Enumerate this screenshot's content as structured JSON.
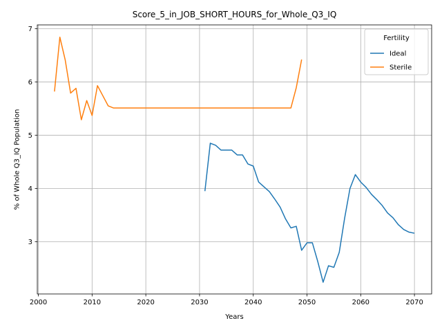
{
  "chart_data": {
    "type": "line",
    "title": "Score_5_in_JOB_SHORT_HOURS_for_Whole_Q3_IQ",
    "xlabel": "Years",
    "ylabel": "% of Whole Q3_IQ Population",
    "xlim": [
      1999.8,
      2073.2
    ],
    "ylim": [
      2.02,
      7.07
    ],
    "xticks": [
      2000,
      2010,
      2020,
      2030,
      2040,
      2050,
      2060,
      2070
    ],
    "yticks": [
      3,
      4,
      5,
      6,
      7
    ],
    "grid": true,
    "legend": {
      "title": "Fertility",
      "placement": "top-right"
    },
    "series": [
      {
        "name": "Ideal",
        "color": "#1f77b4",
        "x": [
          2031,
          2032,
          2033,
          2034,
          2035,
          2036,
          2037,
          2038,
          2039,
          2040,
          2041,
          2042,
          2043,
          2044,
          2045,
          2046,
          2047,
          2048,
          2049,
          2050,
          2051,
          2052,
          2053,
          2054,
          2055,
          2056,
          2057,
          2058,
          2059,
          2060,
          2061,
          2062,
          2063,
          2064,
          2065,
          2066,
          2067,
          2068,
          2069,
          2070
        ],
        "y": [
          3.95,
          4.85,
          4.81,
          4.72,
          4.72,
          4.72,
          4.63,
          4.63,
          4.46,
          4.42,
          4.12,
          4.03,
          3.94,
          3.8,
          3.65,
          3.43,
          3.26,
          3.29,
          2.84,
          2.98,
          2.98,
          2.63,
          2.24,
          2.55,
          2.52,
          2.8,
          3.44,
          4.0,
          4.26,
          4.12,
          4.02,
          3.89,
          3.79,
          3.68,
          3.54,
          3.45,
          3.32,
          3.23,
          3.18,
          3.16
        ]
      },
      {
        "name": "Sterile",
        "color": "#ff7f0e",
        "x": [
          2003,
          2004,
          2005,
          2006,
          2007,
          2008,
          2009,
          2010,
          2011,
          2012,
          2013,
          2014,
          2015,
          2020,
          2025,
          2030,
          2035,
          2040,
          2045,
          2046,
          2047,
          2048,
          2049
        ],
        "y": [
          5.82,
          6.84,
          6.41,
          5.79,
          5.88,
          5.29,
          5.65,
          5.37,
          5.93,
          5.74,
          5.55,
          5.51,
          5.51,
          5.51,
          5.51,
          5.51,
          5.51,
          5.51,
          5.51,
          5.51,
          5.51,
          5.89,
          6.42
        ]
      }
    ]
  }
}
